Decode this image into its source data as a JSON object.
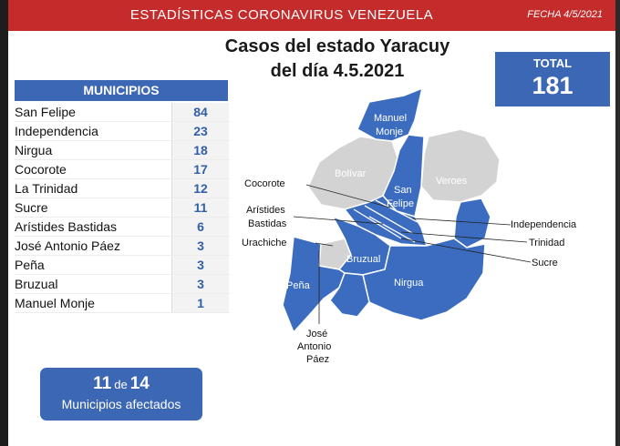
{
  "header": {
    "title": "ESTADÍSTICAS CORONAVIRUS VENEZUELA",
    "date": "FECHA 4/5/2021"
  },
  "map_title": {
    "line1": "Casos del estado Yaracuy",
    "line2": "del día 4.5.2021"
  },
  "total": {
    "label": "TOTAL",
    "value": "181"
  },
  "municipios": {
    "header": "MUNICIPIOS",
    "items": [
      {
        "name": "San Felipe",
        "cases": "84"
      },
      {
        "name": "Independencia",
        "cases": "23"
      },
      {
        "name": "Nirgua",
        "cases": "18"
      },
      {
        "name": "Cocorote",
        "cases": "17"
      },
      {
        "name": "La Trinidad",
        "cases": "12"
      },
      {
        "name": "Sucre",
        "cases": "11"
      },
      {
        "name": "Arístides Bastidas",
        "cases": "6"
      },
      {
        "name": "José Antonio Páez",
        "cases": "3"
      },
      {
        "name": "Peña",
        "cases": "3"
      },
      {
        "name": "Bruzual",
        "cases": "3"
      },
      {
        "name": "Manuel Monje",
        "cases": "1"
      }
    ]
  },
  "affected": {
    "count": "11",
    "connector": "de",
    "total": "14",
    "label": "Municipios afectados"
  },
  "map": {
    "colors": {
      "affected": "#3b6cc0",
      "unaffected": "#d3d3d3",
      "border": "#ffffff"
    },
    "labels": {
      "manuel_monje_1": "Manuel",
      "manuel_monje_2": "Monje",
      "bolivar": "Bolívar",
      "veroes": "Veroes",
      "san_felipe_1": "San",
      "san_felipe_2": "Felipe",
      "bruzual": "Bruzual",
      "nirgua": "Nirgua",
      "pena": "Peña",
      "cocorote": "Cocorote",
      "aristides_1": "Arístides",
      "aristides_2": "Bastidas",
      "urachiche": "Urachiche",
      "independencia": "Independencia",
      "trinidad": "Trinidad",
      "sucre": "Sucre",
      "jap_1": "José",
      "jap_2": "Antonio",
      "jap_3": "Páez"
    }
  }
}
